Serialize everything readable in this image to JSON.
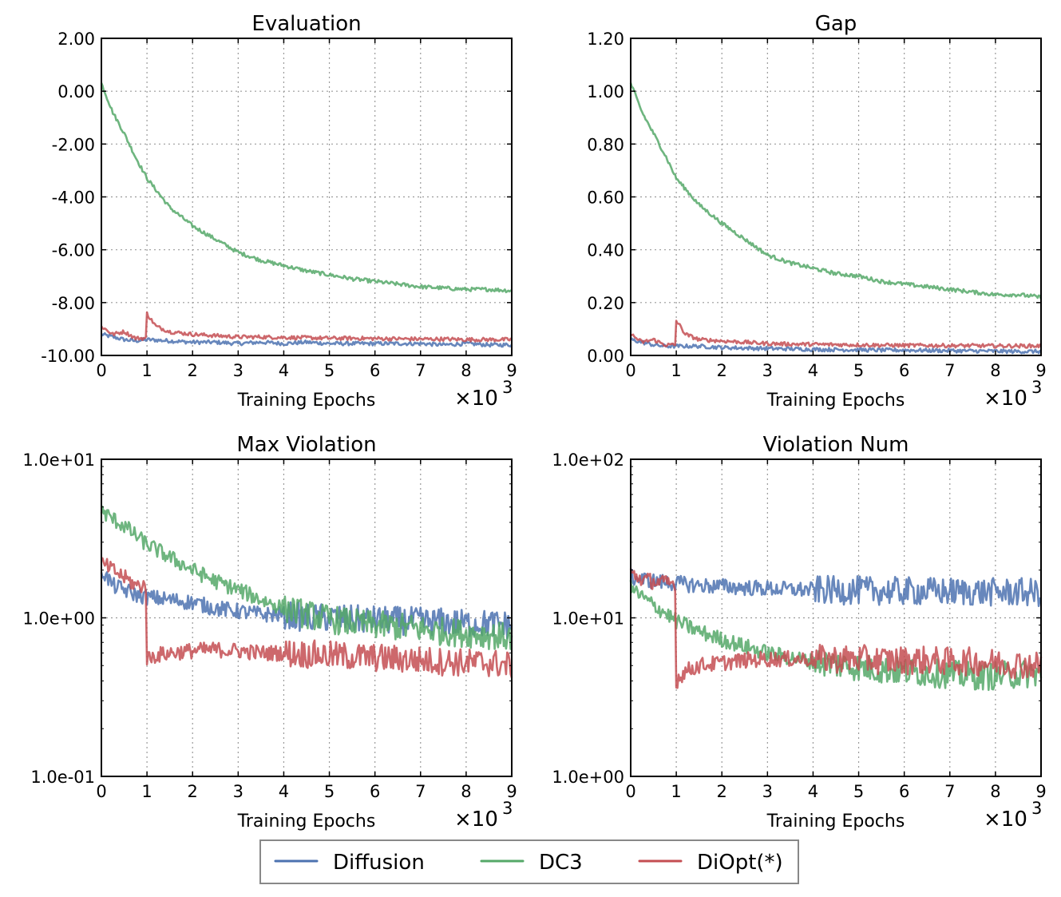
{
  "legend": {
    "entries": [
      {
        "name": "Diffusion",
        "color": "#4c72b0"
      },
      {
        "name": "DC3",
        "color": "#55a868"
      },
      {
        "name": "DiOpt(*)",
        "color": "#c44e52"
      }
    ]
  },
  "chart_data": [
    {
      "type": "line",
      "title": "Evaluation",
      "xlabel": "Training Epochs",
      "x_multiplier": "×10",
      "x_multiplier_exp": "3",
      "xlim": [
        0,
        9
      ],
      "ylim": [
        -10,
        2
      ],
      "yscale": "linear",
      "grid": true,
      "xticks": [
        0,
        1,
        2,
        3,
        4,
        5,
        6,
        7,
        8,
        9
      ],
      "xtick_labels": [
        "0",
        "1",
        "2",
        "3",
        "4",
        "5",
        "6",
        "7",
        "8",
        "9"
      ],
      "yticks": [
        2,
        0,
        -2,
        -4,
        -6,
        -8,
        -10
      ],
      "ytick_labels": [
        "2.00",
        "0.00",
        "-2.00",
        "-4.00",
        "-6.00",
        "-8.00",
        "-10.00"
      ],
      "series": [
        {
          "name": "Diffusion",
          "x": [
            0,
            0.25,
            0.5,
            0.75,
            1,
            1.5,
            2,
            2.5,
            3,
            3.5,
            4,
            4.5,
            5,
            5.5,
            6,
            6.5,
            7,
            7.5,
            8,
            8.5,
            9
          ],
          "y": [
            -9.2,
            -9.3,
            -9.4,
            -9.45,
            -9.4,
            -9.45,
            -9.5,
            -9.5,
            -9.55,
            -9.5,
            -9.55,
            -9.5,
            -9.55,
            -9.55,
            -9.55,
            -9.55,
            -9.55,
            -9.6,
            -9.55,
            -9.6,
            -9.6
          ]
        },
        {
          "name": "DC3",
          "x": [
            0,
            0.25,
            0.5,
            0.75,
            1,
            1.5,
            2,
            2.5,
            3,
            3.5,
            4,
            4.5,
            5,
            5.5,
            6,
            6.5,
            7,
            7.5,
            8,
            8.5,
            9
          ],
          "y": [
            0.3,
            -0.8,
            -1.6,
            -2.5,
            -3.3,
            -4.4,
            -5.1,
            -5.6,
            -6.1,
            -6.4,
            -6.6,
            -6.8,
            -6.95,
            -7.1,
            -7.2,
            -7.3,
            -7.4,
            -7.45,
            -7.5,
            -7.5,
            -7.55
          ]
        },
        {
          "name": "DiOpt(*)",
          "x": [
            0,
            0.25,
            0.5,
            0.75,
            0.99,
            1.0,
            1.05,
            1.2,
            1.5,
            2,
            2.5,
            3,
            3.5,
            4,
            4.5,
            5,
            5.5,
            6,
            6.5,
            7,
            7.5,
            8,
            8.5,
            9
          ],
          "y": [
            -8.9,
            -9.2,
            -9.1,
            -9.35,
            -9.35,
            -8.4,
            -8.55,
            -8.9,
            -9.1,
            -9.2,
            -9.25,
            -9.3,
            -9.3,
            -9.32,
            -9.33,
            -9.35,
            -9.35,
            -9.36,
            -9.37,
            -9.38,
            -9.38,
            -9.4,
            -9.4,
            -9.4
          ]
        }
      ]
    },
    {
      "type": "line",
      "title": "Gap",
      "xlabel": "Training Epochs",
      "x_multiplier": "×10",
      "x_multiplier_exp": "3",
      "xlim": [
        0,
        9
      ],
      "ylim": [
        0,
        1.2
      ],
      "yscale": "linear",
      "grid": true,
      "xticks": [
        0,
        1,
        2,
        3,
        4,
        5,
        6,
        7,
        8,
        9
      ],
      "xtick_labels": [
        "0",
        "1",
        "2",
        "3",
        "4",
        "5",
        "6",
        "7",
        "8",
        "9"
      ],
      "yticks": [
        1.2,
        1.0,
        0.8,
        0.6,
        0.4,
        0.2,
        0.0
      ],
      "ytick_labels": [
        "1.20",
        "1.00",
        "0.80",
        "0.60",
        "0.40",
        "0.20",
        "0.00"
      ],
      "series": [
        {
          "name": "Diffusion",
          "x": [
            0,
            0.25,
            0.5,
            0.75,
            1,
            1.5,
            2,
            2.5,
            3,
            3.5,
            4,
            4.5,
            5,
            5.5,
            6,
            6.5,
            7,
            7.5,
            8,
            8.5,
            9
          ],
          "y": [
            0.06,
            0.05,
            0.04,
            0.035,
            0.035,
            0.035,
            0.03,
            0.028,
            0.026,
            0.025,
            0.023,
            0.022,
            0.021,
            0.02,
            0.02,
            0.019,
            0.018,
            0.017,
            0.016,
            0.015,
            0.015
          ]
        },
        {
          "name": "DC3",
          "x": [
            0,
            0.25,
            0.5,
            0.75,
            1,
            1.5,
            2,
            2.5,
            3,
            3.5,
            4,
            4.5,
            5,
            5.5,
            6,
            6.5,
            7,
            7.5,
            8,
            8.5,
            9
          ],
          "y": [
            1.03,
            0.92,
            0.84,
            0.76,
            0.67,
            0.57,
            0.5,
            0.44,
            0.38,
            0.35,
            0.33,
            0.31,
            0.3,
            0.28,
            0.27,
            0.26,
            0.25,
            0.24,
            0.23,
            0.23,
            0.22
          ]
        },
        {
          "name": "DiOpt(*)",
          "x": [
            0,
            0.25,
            0.5,
            0.75,
            0.99,
            1.0,
            1.05,
            1.2,
            1.5,
            2,
            2.5,
            3,
            3.5,
            4,
            4.5,
            5,
            5.5,
            6,
            6.5,
            7,
            7.5,
            8,
            8.5,
            9
          ],
          "y": [
            0.08,
            0.05,
            0.06,
            0.04,
            0.04,
            0.13,
            0.12,
            0.08,
            0.06,
            0.055,
            0.05,
            0.045,
            0.043,
            0.042,
            0.041,
            0.04,
            0.039,
            0.038,
            0.038,
            0.037,
            0.037,
            0.036,
            0.036,
            0.036
          ]
        }
      ]
    },
    {
      "type": "line",
      "title": "Max Violation",
      "xlabel": "Training Epochs",
      "x_multiplier": "×10",
      "x_multiplier_exp": "3",
      "xlim": [
        0,
        9
      ],
      "ylim": [
        0.1,
        10
      ],
      "yscale": "log",
      "grid": true,
      "xticks": [
        0,
        1,
        2,
        3,
        4,
        5,
        6,
        7,
        8,
        9
      ],
      "xtick_labels": [
        "0",
        "1",
        "2",
        "3",
        "4",
        "5",
        "6",
        "7",
        "8",
        "9"
      ],
      "yticks": [
        10,
        1,
        0.1
      ],
      "ytick_labels": [
        "1.0e+01",
        "1.0e+00",
        "1.0e-01"
      ],
      "series": [
        {
          "name": "Diffusion",
          "x": [
            0,
            0.25,
            0.5,
            0.75,
            1,
            1.5,
            2,
            2.5,
            3,
            3.5,
            4,
            4.5,
            5,
            5.5,
            6,
            6.5,
            7,
            7.5,
            8,
            8.5,
            9
          ],
          "y": [
            2.0,
            1.6,
            1.5,
            1.4,
            1.35,
            1.3,
            1.25,
            1.15,
            1.1,
            1.05,
            1.05,
            1.0,
            1.0,
            0.98,
            0.97,
            0.96,
            0.95,
            0.94,
            0.92,
            0.92,
            0.9
          ]
        },
        {
          "name": "DC3",
          "x": [
            0,
            0.25,
            0.5,
            0.75,
            1,
            1.5,
            2,
            2.5,
            3,
            3.5,
            4,
            4.5,
            5,
            5.5,
            6,
            6.5,
            7,
            7.5,
            8,
            8.5,
            9
          ],
          "y": [
            4.7,
            4.2,
            3.8,
            3.3,
            2.9,
            2.4,
            2.0,
            1.7,
            1.5,
            1.3,
            1.15,
            1.05,
            0.98,
            0.93,
            0.9,
            0.88,
            0.85,
            0.82,
            0.8,
            0.78,
            0.75
          ]
        },
        {
          "name": "DiOpt(*)",
          "x": [
            0,
            0.25,
            0.5,
            0.75,
            0.99,
            1.0,
            1.05,
            1.2,
            1.5,
            2,
            2.5,
            3,
            3.5,
            4,
            4.5,
            5,
            5.5,
            6,
            6.5,
            7,
            7.5,
            8,
            8.5,
            9
          ],
          "y": [
            2.2,
            2.0,
            1.8,
            1.6,
            1.6,
            0.55,
            0.56,
            0.58,
            0.6,
            0.62,
            0.63,
            0.62,
            0.6,
            0.6,
            0.59,
            0.58,
            0.57,
            0.56,
            0.55,
            0.54,
            0.53,
            0.52,
            0.52,
            0.5
          ]
        }
      ]
    },
    {
      "type": "line",
      "title": "Violation Num",
      "xlabel": "Training Epochs",
      "x_multiplier": "×10",
      "x_multiplier_exp": "3",
      "xlim": [
        0,
        9
      ],
      "ylim": [
        1,
        100
      ],
      "yscale": "log",
      "grid": true,
      "xticks": [
        0,
        1,
        2,
        3,
        4,
        5,
        6,
        7,
        8,
        9
      ],
      "xtick_labels": [
        "0",
        "1",
        "2",
        "3",
        "4",
        "5",
        "6",
        "7",
        "8",
        "9"
      ],
      "yticks": [
        100,
        10,
        1
      ],
      "ytick_labels": [
        "1.0e+02",
        "1.0e+01",
        "1.0e+00"
      ],
      "series": [
        {
          "name": "Diffusion",
          "x": [
            0,
            0.25,
            0.5,
            0.75,
            1,
            1.5,
            2,
            2.5,
            3,
            3.5,
            4,
            4.5,
            5,
            5.5,
            6,
            6.5,
            7,
            7.5,
            8,
            8.5,
            9
          ],
          "y": [
            18,
            17.5,
            17,
            16.8,
            16.5,
            16,
            15.8,
            15.5,
            15.3,
            15.1,
            15.0,
            14.9,
            14.9,
            14.8,
            14.7,
            14.7,
            14.6,
            14.6,
            14.5,
            14.5,
            14.4
          ]
        },
        {
          "name": "DC3",
          "x": [
            0,
            0.25,
            0.5,
            0.75,
            1,
            1.5,
            2,
            2.5,
            3,
            3.5,
            4,
            4.5,
            5,
            5.5,
            6,
            6.5,
            7,
            7.5,
            8,
            8.5,
            9
          ],
          "y": [
            15.5,
            13.5,
            12,
            10.8,
            9.5,
            8.2,
            7.3,
            6.6,
            6.0,
            5.6,
            5.3,
            5.1,
            4.9,
            4.7,
            4.6,
            4.5,
            4.4,
            4.3,
            4.3,
            4.4,
            4.5
          ]
        },
        {
          "name": "DiOpt(*)",
          "x": [
            0,
            0.25,
            0.5,
            0.75,
            0.99,
            1.0,
            1.05,
            1.2,
            1.5,
            2,
            2.5,
            3,
            3.5,
            4,
            4.5,
            5,
            5.5,
            6,
            6.5,
            7,
            7.5,
            8,
            8.5,
            9
          ],
          "y": [
            19,
            17.5,
            17,
            16.5,
            16.5,
            3.6,
            4.2,
            4.6,
            5.0,
            5.2,
            5.4,
            5.5,
            5.5,
            5.5,
            5.5,
            5.5,
            5.4,
            5.4,
            5.4,
            5.3,
            5.3,
            5.2,
            5.1,
            5.0
          ]
        }
      ]
    }
  ]
}
